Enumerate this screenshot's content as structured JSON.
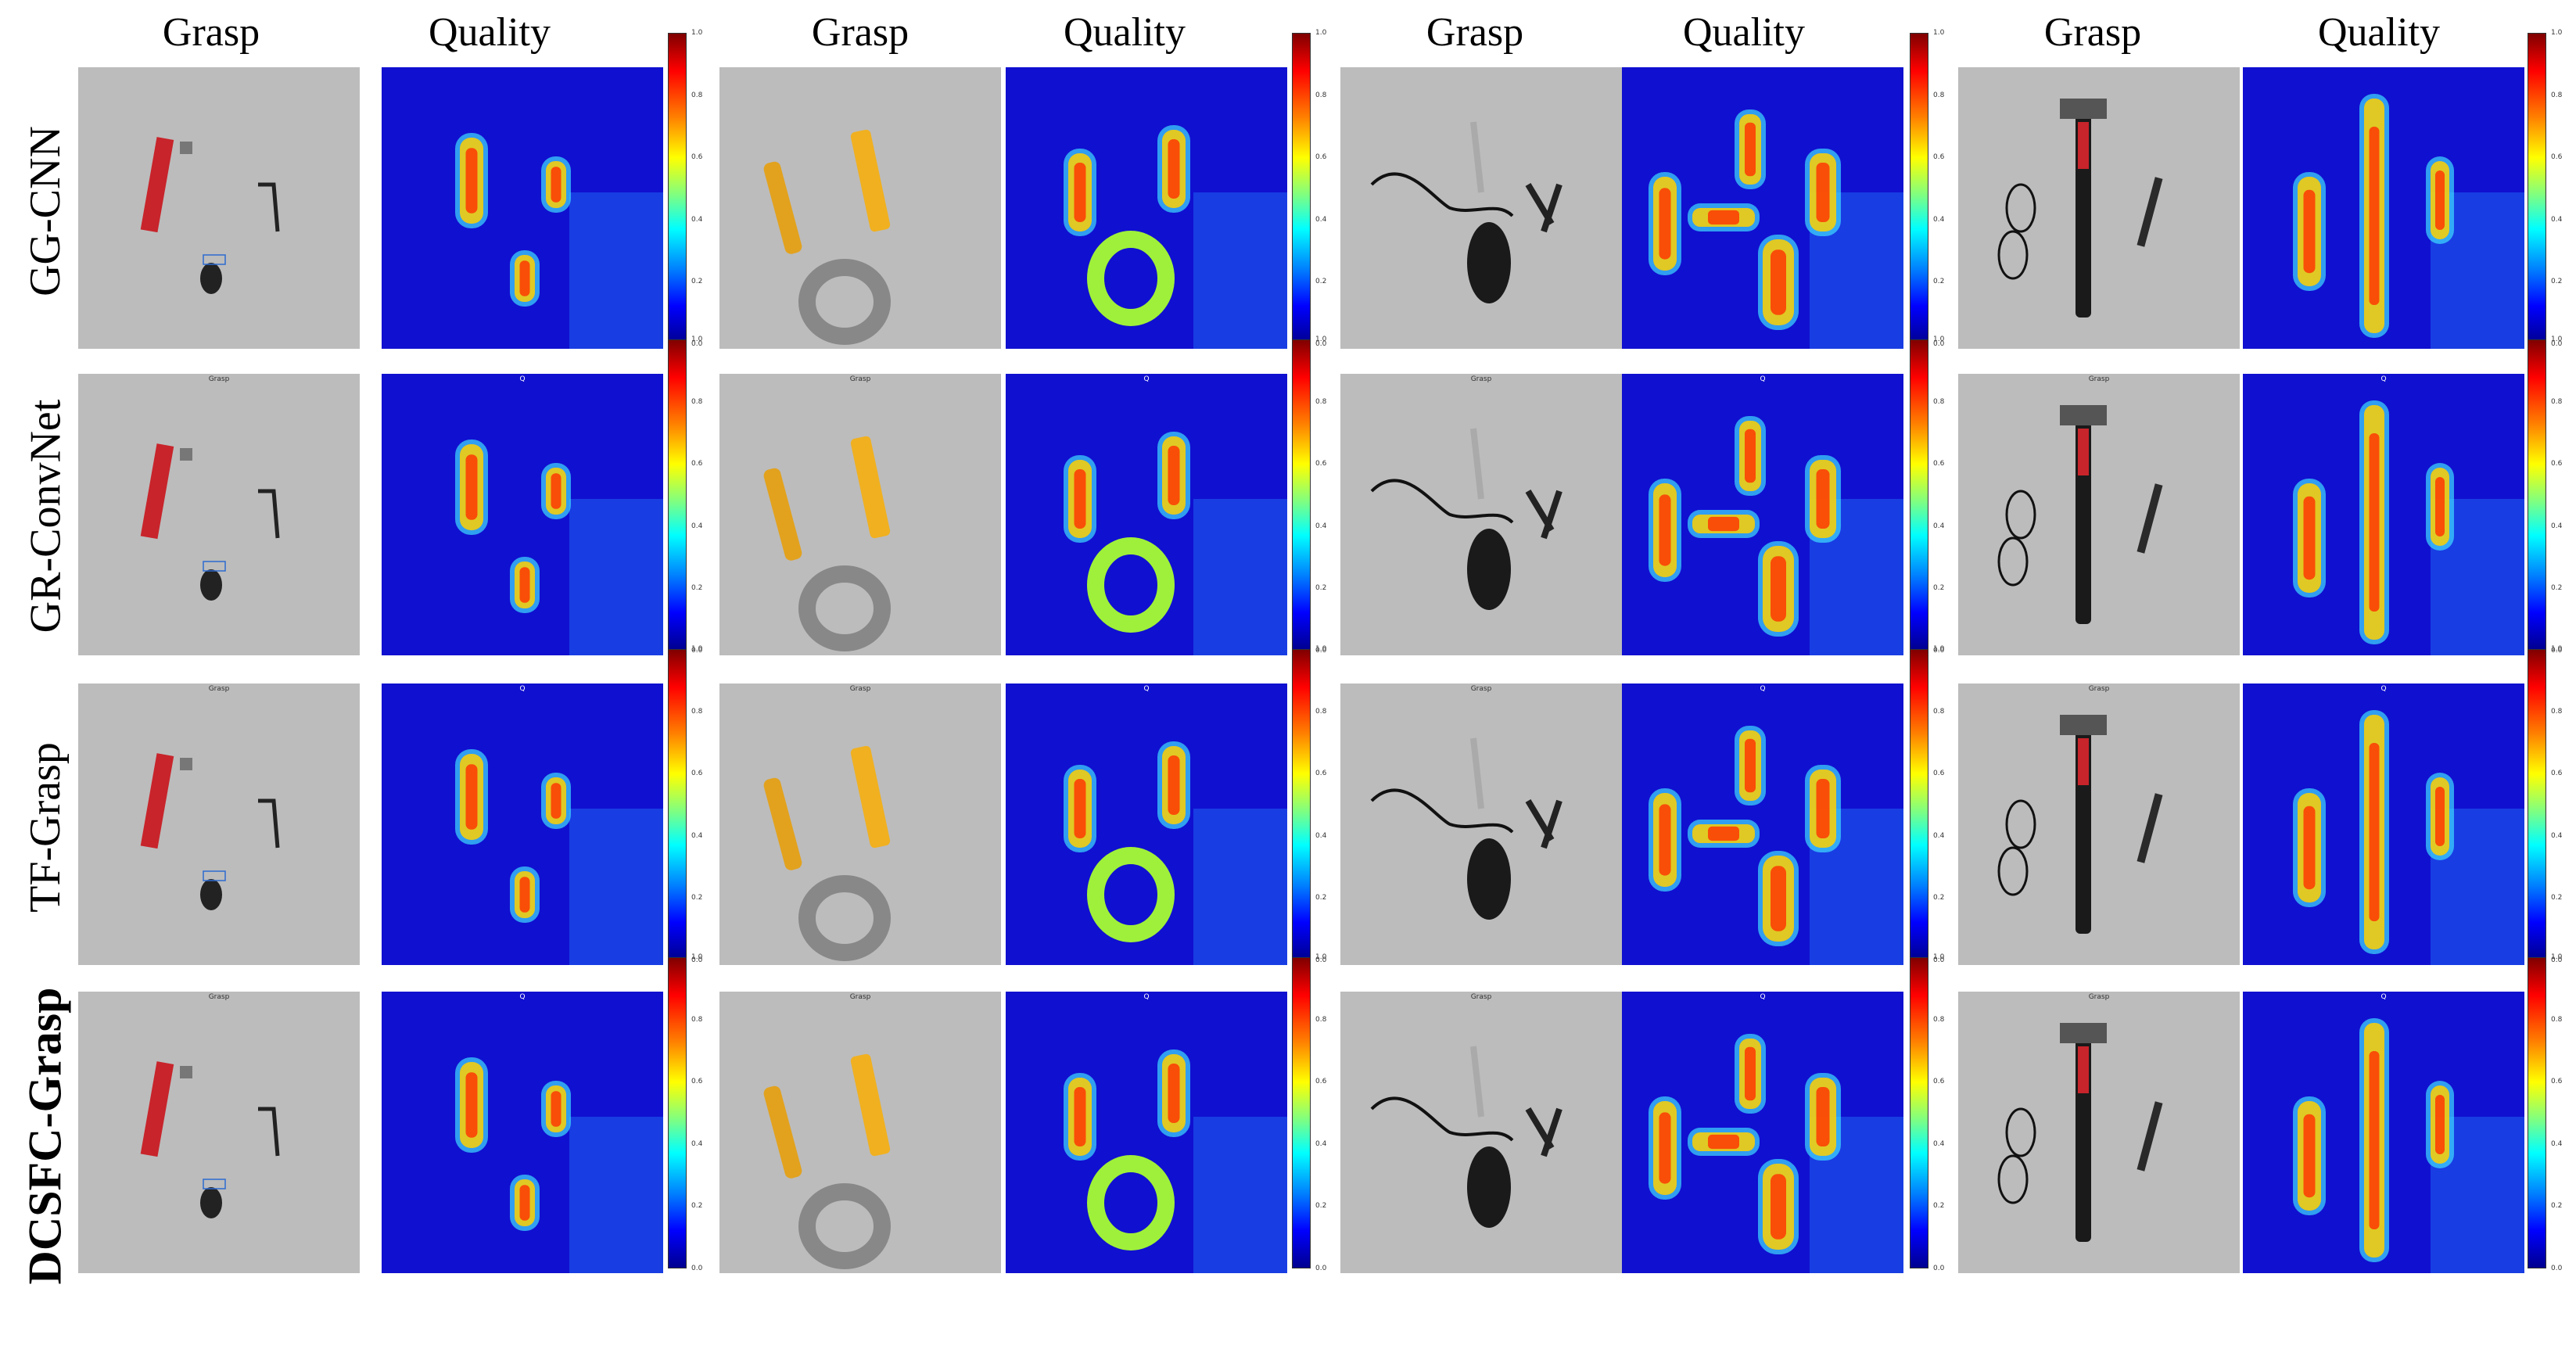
{
  "column_headers": [
    "Grasp",
    "Quality",
    "Grasp",
    "Quality",
    "Grasp",
    "Quality",
    "Grasp",
    "Quality"
  ],
  "row_labels": [
    "GG-CNN",
    "GR-ConvNet",
    "TF-Grasp",
    "DCSFC-Grasp"
  ],
  "panel_titles": {
    "grasp": "Grasp",
    "quality": "Q"
  },
  "colorbar_ticks": [
    "1.0",
    "0.8",
    "0.6",
    "0.4",
    "0.2",
    "0.0"
  ],
  "colormap": "jet",
  "colors": {
    "background": "#ffffff",
    "table": "#bcbcbc",
    "quality_low": "#1010d0",
    "quality_high": "#ff2000"
  }
}
